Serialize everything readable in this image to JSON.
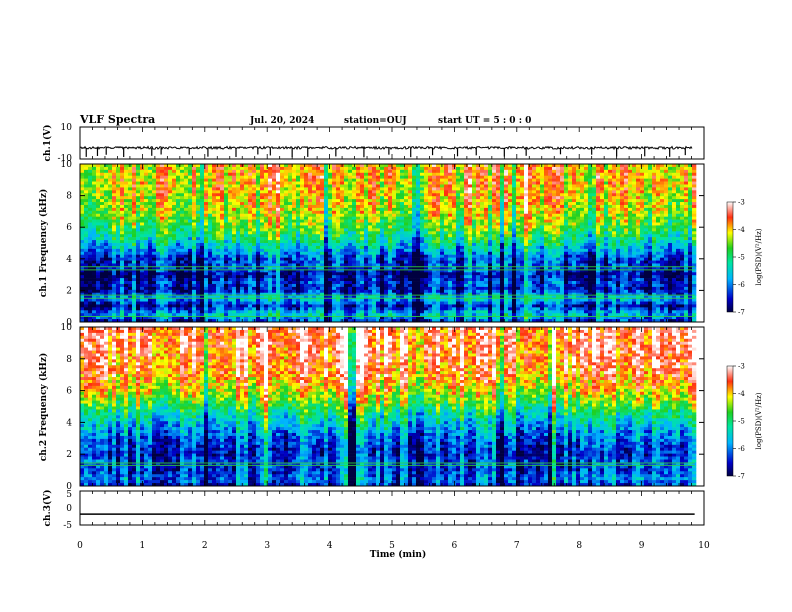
{
  "header": {
    "title": "VLF Spectra",
    "date": "Jul. 20, 2024",
    "station": "station=OUJ",
    "start": "start  UT =  5 : 0 : 0"
  },
  "chart_data": [
    {
      "id": "ch1-waveform",
      "type": "line",
      "ylabel": "ch.1(V)",
      "ylim": [
        -10,
        10
      ],
      "yticks": [
        "10",
        "-10"
      ],
      "xlim": [
        0,
        10
      ],
      "description_level": "noisy signal around -3 V with occasional negative spikes to about -9 V",
      "baseline": -3,
      "spike_times": [
        0.1,
        0.28,
        0.42,
        0.7,
        1.15,
        1.3,
        1.75,
        2.05,
        2.5,
        2.85,
        3.05,
        3.4,
        3.65,
        4.1,
        4.55,
        4.95,
        5.3,
        5.65,
        6.05,
        6.35,
        6.8,
        7.15,
        7.7,
        8.2,
        8.6,
        9.05,
        9.45,
        9.7
      ]
    },
    {
      "id": "ch1-spectrogram",
      "type": "heatmap",
      "ylabel": "ch.1 Frequency (kHz)",
      "ylim": [
        0,
        10
      ],
      "yticks": [
        "0",
        "2",
        "4",
        "6",
        "8",
        "10"
      ],
      "xlim": [
        0,
        10
      ],
      "data_extent_x": [
        0,
        9.85
      ],
      "profile_freq_khz": [
        0,
        0.5,
        1,
        1.5,
        2,
        2.5,
        3,
        3.5,
        4,
        4.5,
        5,
        5.5,
        6,
        7,
        8,
        9,
        10
      ],
      "profile_log_psd": [
        -6.5,
        -5.6,
        -6.6,
        -5.6,
        -6.6,
        -6.4,
        -6.8,
        -6.3,
        -6.3,
        -5.8,
        -5.4,
        -5.0,
        -4.7,
        -4.3,
        -4.1,
        -4.0,
        -4.0
      ],
      "lines_khz": [
        0.35,
        1.5,
        1.7,
        3.3,
        3.5
      ],
      "colorbar": {
        "label": "log(PSD)(V²/Hz)",
        "min": -7,
        "max": -3,
        "ticks": [
          "-3",
          "-4",
          "-5",
          "-6",
          "-7"
        ]
      }
    },
    {
      "id": "ch2-spectrogram",
      "type": "heatmap",
      "ylabel": "ch.2 Frequency (kHz)",
      "ylim": [
        0,
        10
      ],
      "yticks": [
        "0",
        "2",
        "4",
        "6",
        "8",
        "10"
      ],
      "xlim": [
        0,
        10
      ],
      "data_extent_x": [
        0,
        9.85
      ],
      "profile_freq_khz": [
        0,
        0.5,
        1,
        1.5,
        2,
        2.5,
        3,
        3.5,
        4,
        4.5,
        5,
        5.5,
        6,
        7,
        8,
        9,
        10
      ],
      "profile_log_psd": [
        -6.4,
        -6.0,
        -6.3,
        -6.2,
        -6.4,
        -6.3,
        -6.1,
        -5.8,
        -5.5,
        -5.2,
        -4.8,
        -4.4,
        -4.1,
        -3.7,
        -3.5,
        -3.4,
        -3.4
      ],
      "lines_khz": [
        1.3,
        1.45
      ],
      "colorbar": {
        "label": "log(PSD)(V²/Hz)",
        "min": -7,
        "max": -3,
        "ticks": [
          "-3",
          "-4",
          "-5",
          "-6",
          "-7"
        ]
      }
    },
    {
      "id": "ch3-waveform",
      "type": "line",
      "ylabel": "ch.3(V)",
      "ylim": [
        -5,
        5
      ],
      "yticks": [
        "5",
        "0",
        "-5"
      ],
      "xlim": [
        0,
        10
      ],
      "xlabel": "Time (min)",
      "xticks": [
        "0",
        "1",
        "2",
        "3",
        "4",
        "5",
        "6",
        "7",
        "8",
        "9",
        "10"
      ],
      "level": -1.8,
      "data_extent_x": [
        0,
        9.85
      ]
    }
  ]
}
